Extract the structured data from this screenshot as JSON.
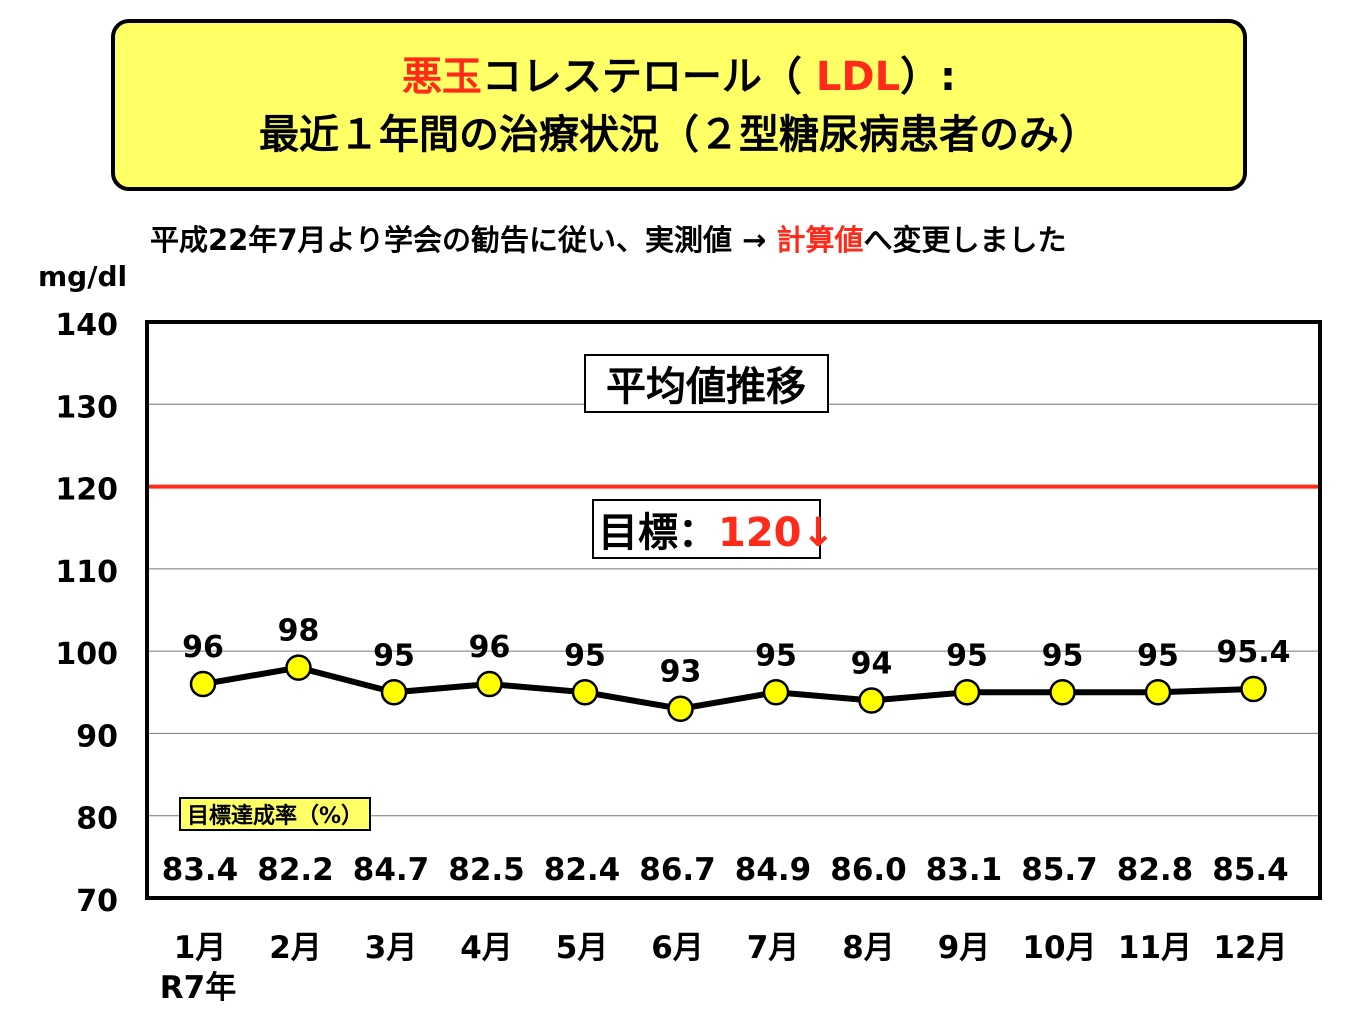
{
  "title": {
    "line1_red": "悪玉",
    "line1_a": "コレステロール（ ",
    "line1_ldl": "LDL",
    "line1_b": "）:",
    "line2": "最近１年間の治療状況（２型糖尿病患者のみ）"
  },
  "note": {
    "prefix": "平成22年7月より学会の勧告に従い、実測値 → ",
    "highlight": "計算値",
    "suffix": "へ変更しました"
  },
  "colors": {
    "title_bg": "#FFFF66",
    "accent_red": "#FF2A1A",
    "marker": "#FFFF00",
    "line": "#000000"
  },
  "chart_data": {
    "type": "line",
    "title": "平均値推移",
    "ylabel": "mg/dl",
    "ylim": [
      70,
      140
    ],
    "yticks": [
      70,
      80,
      90,
      100,
      110,
      120,
      130,
      140
    ],
    "categories": [
      "1月",
      "2月",
      "3月",
      "4月",
      "5月",
      "6月",
      "7月",
      "8月",
      "9月",
      "10月",
      "11月",
      "12月"
    ],
    "x_sublabel": "R7年",
    "series": [
      {
        "name": "平均値",
        "values": [
          96,
          98,
          95,
          96,
          95,
          93,
          95,
          94,
          95,
          95,
          95,
          95.4
        ],
        "labels": [
          "96",
          "98",
          "95",
          "96",
          "95",
          "93",
          "95",
          "94",
          "95",
          "95",
          "95",
          "95.4"
        ]
      }
    ],
    "target": {
      "value": 120,
      "label_prefix": "目標：",
      "label_value": "120↓"
    },
    "achievement": {
      "label": "目標達成率（%）",
      "values": [
        "83.4",
        "82.2",
        "84.7",
        "82.5",
        "82.4",
        "86.7",
        "84.9",
        "86.0",
        "83.1",
        "85.7",
        "82.8",
        "85.4"
      ]
    },
    "grid": true
  }
}
